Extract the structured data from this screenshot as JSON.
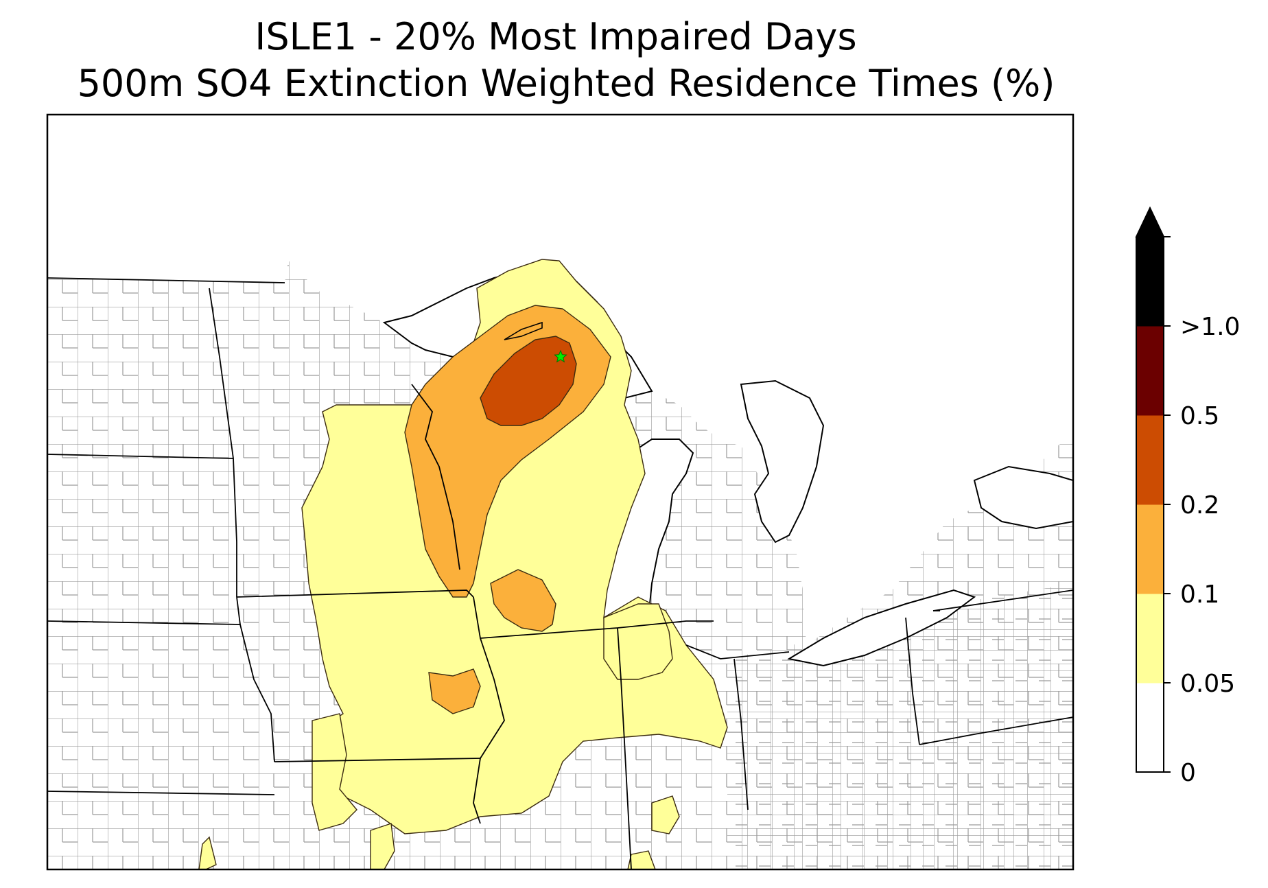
{
  "title": {
    "line1": "ISLE1 - 20% Most Impaired Days",
    "line2": "500m SO4 Extinction Weighted Residence Times (%)"
  },
  "colorbar": {
    "extend": "max",
    "levels": [
      {
        "label": "0",
        "value": 0,
        "color": "#ffffff"
      },
      {
        "label": "0.05",
        "value": 0.05,
        "color": "#ffff99"
      },
      {
        "label": "0.1",
        "value": 0.1,
        "color": "#fbb03b"
      },
      {
        "label": "0.2",
        "value": 0.2,
        "color": "#cc4c02"
      },
      {
        "label": "0.5",
        "value": 0.5,
        "color": "#6b0000"
      },
      {
        "label": ">1.0",
        "value": 1.0,
        "color": "#000000"
      }
    ],
    "bins": [
      {
        "from": 0,
        "to": 0.05,
        "color": "#ffffff"
      },
      {
        "from": 0.05,
        "to": 0.1,
        "color": "#ffff99"
      },
      {
        "from": 0.1,
        "to": 0.2,
        "color": "#fbb03b"
      },
      {
        "from": 0.2,
        "to": 0.5,
        "color": "#cc4c02"
      },
      {
        "from": 0.5,
        "to": 1.0,
        "color": "#6b0000"
      },
      {
        "from": 1.0,
        "to": null,
        "color": "#000000"
      }
    ]
  },
  "map": {
    "site_marker": {
      "shape": "star",
      "color": "#00ee00"
    },
    "county_line_color": "#9a9a9a",
    "state_line_color": "#000000"
  }
}
